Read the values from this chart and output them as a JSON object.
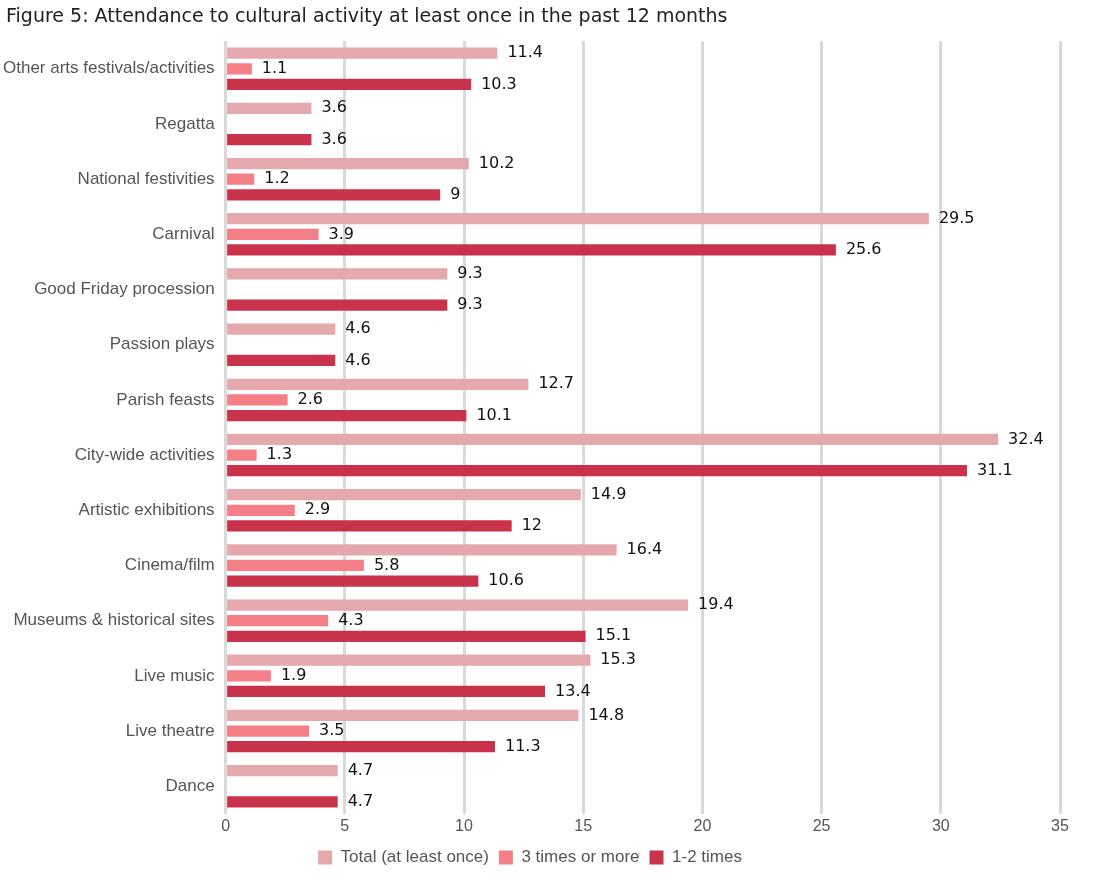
{
  "chart_data": {
    "type": "bar",
    "orientation": "horizontal",
    "title": "Figure 5: Attendance to cultural activity at least once in the past 12 months",
    "categories": [
      "Other arts festivals/activities",
      "Regatta",
      "National festivities",
      "Carnival",
      "Good Friday procession",
      "Passion plays",
      "Parish feasts",
      "City-wide activities",
      "Artistic exhibitions",
      "Cinema/film",
      "Museums & historical sites",
      "Live music",
      "Live theatre",
      "Dance"
    ],
    "series": [
      {
        "name": "Total (at least once)",
        "color": "#e5a8ad",
        "values": [
          11.4,
          3.6,
          10.2,
          29.5,
          9.3,
          4.6,
          12.7,
          32.4,
          14.9,
          16.4,
          19.4,
          15.3,
          14.8,
          4.7
        ]
      },
      {
        "name": "3 times or more",
        "color": "#f47f86",
        "values": [
          1.1,
          null,
          1.2,
          3.9,
          null,
          null,
          2.6,
          1.3,
          2.9,
          5.8,
          4.3,
          1.9,
          3.5,
          null
        ]
      },
      {
        "name": "1-2 times",
        "color": "#c8334b",
        "values": [
          10.3,
          3.6,
          9,
          25.6,
          9.3,
          4.6,
          10.1,
          31.1,
          12,
          10.6,
          15.1,
          13.4,
          11.3,
          4.7
        ]
      }
    ],
    "xlim": [
      0,
      35
    ],
    "xticks": [
      0,
      5,
      10,
      15,
      20,
      25,
      30,
      35
    ],
    "grid": "x",
    "legend": "bottom",
    "data_labels": true
  }
}
